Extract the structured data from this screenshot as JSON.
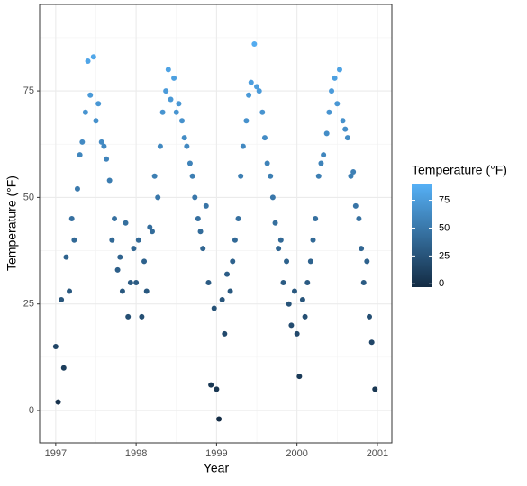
{
  "chart_data": {
    "type": "scatter",
    "x_label": "Year",
    "y_label": "Temperature (°F)",
    "legend_title": "Temperature (°F)",
    "x": [
      1997.0,
      1997.03,
      1997.07,
      1997.1,
      1997.13,
      1997.17,
      1997.2,
      1997.23,
      1997.27,
      1997.3,
      1997.33,
      1997.37,
      1997.4,
      1997.43,
      1997.47,
      1997.5,
      1997.53,
      1997.57,
      1997.6,
      1997.63,
      1997.67,
      1997.7,
      1997.73,
      1997.77,
      1997.8,
      1997.83,
      1997.87,
      1997.9,
      1997.93,
      1997.97,
      1998.0,
      1998.03,
      1998.07,
      1998.1,
      1998.13,
      1998.17,
      1998.2,
      1998.23,
      1998.27,
      1998.3,
      1998.33,
      1998.37,
      1998.4,
      1998.43,
      1998.47,
      1998.5,
      1998.53,
      1998.57,
      1998.6,
      1998.63,
      1998.67,
      1998.7,
      1998.73,
      1998.77,
      1998.8,
      1998.83,
      1998.87,
      1998.9,
      1998.93,
      1998.97,
      1999.0,
      1999.03,
      1999.07,
      1999.1,
      1999.13,
      1999.17,
      1999.2,
      1999.23,
      1999.27,
      1999.3,
      1999.33,
      1999.37,
      1999.4,
      1999.43,
      1999.47,
      1999.5,
      1999.53,
      1999.57,
      1999.6,
      1999.63,
      1999.67,
      1999.7,
      1999.73,
      1999.77,
      1999.8,
      1999.83,
      1999.87,
      1999.9,
      1999.93,
      1999.97,
      2000.0,
      2000.03,
      2000.07,
      2000.1,
      2000.13,
      2000.17,
      2000.2,
      2000.23,
      2000.27,
      2000.3,
      2000.33,
      2000.37,
      2000.4,
      2000.43,
      2000.47,
      2000.5,
      2000.53,
      2000.57,
      2000.6,
      2000.63,
      2000.67,
      2000.7,
      2000.73,
      2000.77,
      2000.8,
      2000.83,
      2000.87,
      2000.9,
      2000.93,
      2000.97
    ],
    "values": [
      15,
      2,
      26,
      10,
      36,
      28,
      45,
      40,
      52,
      60,
      63,
      70,
      82,
      74,
      83,
      68,
      72,
      63,
      62,
      59,
      54,
      40,
      45,
      33,
      36,
      28,
      44,
      22,
      30,
      38,
      30,
      40,
      22,
      35,
      28,
      43,
      42,
      55,
      50,
      62,
      70,
      75,
      80,
      73,
      78,
      70,
      72,
      68,
      64,
      62,
      58,
      55,
      50,
      45,
      42,
      38,
      48,
      30,
      6,
      24,
      5,
      -2,
      26,
      18,
      32,
      28,
      35,
      40,
      45,
      55,
      62,
      68,
      74,
      77,
      86,
      76,
      75,
      70,
      64,
      58,
      55,
      50,
      44,
      38,
      40,
      30,
      35,
      25,
      20,
      28,
      18,
      8,
      26,
      22,
      30,
      35,
      40,
      45,
      55,
      58,
      60,
      65,
      70,
      75,
      78,
      72,
      80,
      68,
      66,
      64,
      55,
      56,
      48,
      45,
      38,
      30,
      35,
      22,
      16,
      5
    ],
    "xlim": [
      1996.8,
      2001.18
    ],
    "xticks": [
      1997,
      1998,
      1999,
      2000,
      2001
    ],
    "xminor": [
      1997.5,
      1998.5,
      1999.5,
      2000.5
    ],
    "ylim": [
      -7.6,
      95.3
    ],
    "yticks": [
      0,
      25,
      50,
      75
    ],
    "yminor": [
      12.5,
      37.5,
      62.5,
      87.5
    ],
    "grid": true,
    "colorlim": [
      -3,
      90
    ],
    "colors": [
      "#132B43",
      "#56B1F7"
    ],
    "colorticks": [
      0,
      25,
      50,
      75
    ]
  }
}
